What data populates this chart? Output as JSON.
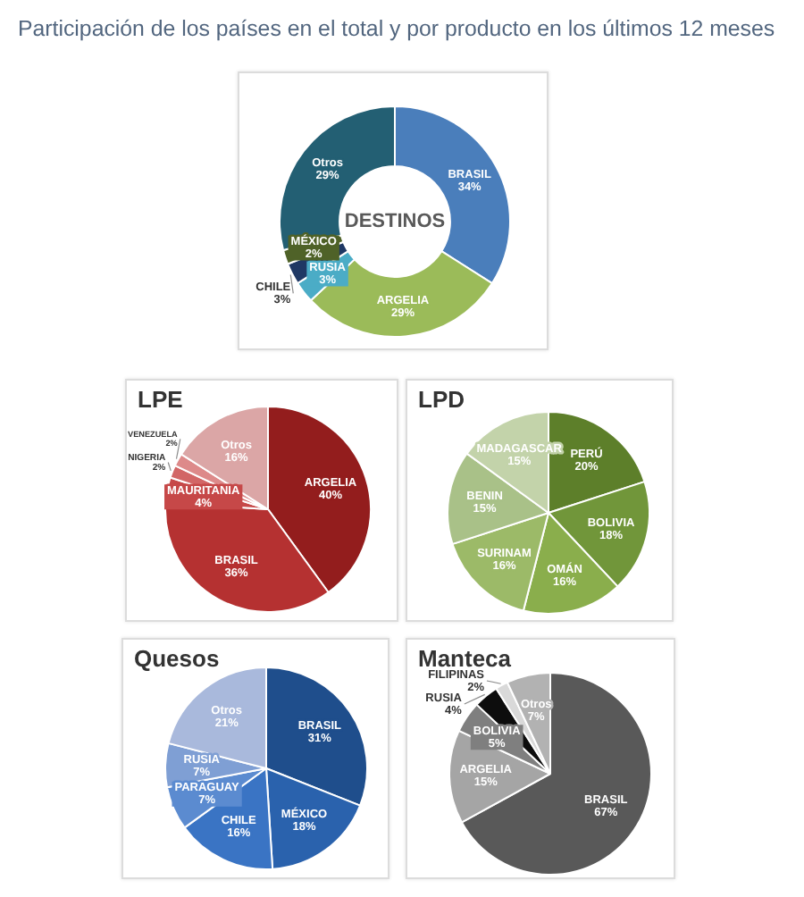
{
  "chart_data": [
    {
      "type": "other",
      "title": "Participación de los países en el total y por producto en los últimos 12 meses"
    },
    {
      "type": "donut",
      "title": "DESTINOS",
      "categories": [
        "BRASIL",
        "ARGELIA",
        "RUSIA",
        "CHILE",
        "MÉXICO",
        "Otros"
      ],
      "values": [
        34,
        29,
        3,
        3,
        2,
        29
      ],
      "value_labels": [
        "34%",
        "29%",
        "3%",
        "3%",
        "2%",
        "29%"
      ],
      "colors": [
        "#4a7ebb",
        "#9bbb59",
        "#4bacc6",
        "#1f3864",
        "#4f6228",
        "#235f73"
      ]
    },
    {
      "type": "pie",
      "title": "LPE",
      "categories": [
        "ARGELIA",
        "BRASIL",
        "MAURITANIA",
        "NIGERIA",
        "VENEZUELA",
        "Otros"
      ],
      "values": [
        40,
        36,
        4,
        2,
        2,
        16
      ],
      "value_labels": [
        "40%",
        "36%",
        "4%",
        "2%",
        "2%",
        "16%"
      ],
      "colors": [
        "#931d1d",
        "#b53131",
        "#c64848",
        "#d26666",
        "#dd8a8a",
        "#dba6a6"
      ]
    },
    {
      "type": "pie",
      "title": "LPD",
      "categories": [
        "PERÚ",
        "BOLIVIA",
        "OMÁN",
        "SURINAM",
        "BENIN",
        "MADAGASCAR"
      ],
      "values": [
        20,
        18,
        16,
        16,
        15,
        15
      ],
      "value_labels": [
        "20%",
        "18%",
        "16%",
        "16%",
        "15%",
        "15%"
      ],
      "colors": [
        "#5d7f2a",
        "#71963a",
        "#8aae4c",
        "#9cba68",
        "#a9c188",
        "#c3d3aa"
      ]
    },
    {
      "type": "pie",
      "title": "Quesos",
      "categories": [
        "BRASIL",
        "MÉXICO",
        "CHILE",
        "PARAGUAY",
        "RUSIA",
        "Otros"
      ],
      "values": [
        31,
        18,
        16,
        7,
        7,
        21
      ],
      "value_labels": [
        "31%",
        "18%",
        "16%",
        "7%",
        "7%",
        "21%"
      ],
      "colors": [
        "#1f4e8c",
        "#2a62ad",
        "#3a74c4",
        "#5b8bd0",
        "#7f9fd4",
        "#a9b9dc"
      ]
    },
    {
      "type": "pie",
      "title": "Manteca",
      "categories": [
        "BRASIL",
        "ARGELIA",
        "BOLIVIA",
        "RUSIA",
        "FILIPINAS",
        "Otros"
      ],
      "values": [
        67,
        15,
        5,
        4,
        2,
        7
      ],
      "value_labels": [
        "67%",
        "15%",
        "5%",
        "4%",
        "2%",
        "7%"
      ],
      "colors": [
        "#595959",
        "#a5a5a5",
        "#7f7f7f",
        "#0d0d0d",
        "#d9d9d9",
        "#b2b2b2"
      ]
    }
  ]
}
